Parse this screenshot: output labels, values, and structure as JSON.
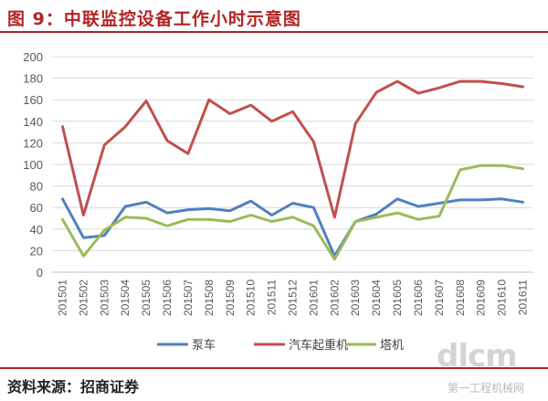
{
  "header": {
    "title": "图 9：中联监控设备工作小时示意图"
  },
  "footer": {
    "source": "资料来源：招商证券"
  },
  "watermark": {
    "logo_text": "dlcm",
    "sub_text": "第一工程机械网"
  },
  "chart_data": {
    "type": "line",
    "title": "",
    "xlabel": "",
    "ylabel": "",
    "ylim": [
      0,
      200
    ],
    "yticks": [
      0,
      20,
      40,
      60,
      80,
      100,
      120,
      140,
      160,
      180,
      200
    ],
    "grid": true,
    "legend_position": "bottom",
    "categories": [
      "201501",
      "201502",
      "201503",
      "201504",
      "201505",
      "201506",
      "201507",
      "201508",
      "201509",
      "201510",
      "201511",
      "201512",
      "201601",
      "201602",
      "201603",
      "201604",
      "201605",
      "201606",
      "201607",
      "201608",
      "201609",
      "201610",
      "201611"
    ],
    "series": [
      {
        "name": "泵车",
        "color": "#4f81bd",
        "values": [
          68,
          32,
          34,
          61,
          65,
          55,
          58,
          59,
          57,
          66,
          53,
          64,
          60,
          15,
          47,
          54,
          68,
          61,
          64,
          67,
          67,
          68,
          65
        ]
      },
      {
        "name": "汽车起重机",
        "color": "#c0504d",
        "values": [
          135,
          53,
          118,
          135,
          159,
          122,
          110,
          160,
          147,
          155,
          140,
          149,
          121,
          51,
          138,
          167,
          177,
          166,
          171,
          177,
          177,
          175,
          172
        ]
      },
      {
        "name": "塔机",
        "color": "#9bbb59",
        "values": [
          49,
          15,
          39,
          51,
          50,
          43,
          49,
          49,
          47,
          53,
          47,
          51,
          43,
          12,
          47,
          51,
          55,
          49,
          52,
          95,
          99,
          99,
          96
        ]
      }
    ]
  }
}
